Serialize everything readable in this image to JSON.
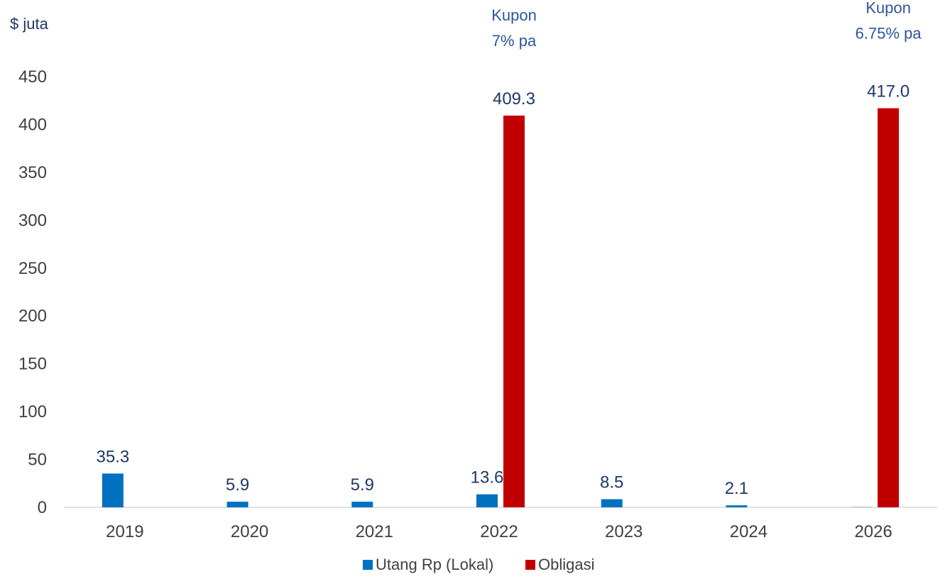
{
  "chart_data": {
    "type": "bar",
    "ylabel": "$ juta",
    "xlabel": "",
    "ylim": [
      0,
      450
    ],
    "yticks": [
      0,
      50,
      100,
      150,
      200,
      250,
      300,
      350,
      400,
      450
    ],
    "grid": false,
    "legend_position": "bottom",
    "categories": [
      "2019",
      "2020",
      "2021",
      "2022",
      "2023",
      "2024",
      "2026"
    ],
    "series": [
      {
        "name": "Utang Rp (Lokal)",
        "color": "#0070c0",
        "values": [
          35.3,
          5.9,
          5.9,
          13.6,
          8.5,
          2.1,
          null
        ],
        "labels": [
          "35.3",
          "5.9",
          "5.9",
          "13.6",
          "8.5",
          "2.1",
          null
        ]
      },
      {
        "name": "Obligasi",
        "color": "#c00000",
        "values": [
          null,
          null,
          null,
          409.3,
          null,
          null,
          417.0
        ],
        "labels": [
          null,
          null,
          null,
          "409.3",
          null,
          null,
          "417.0"
        ]
      }
    ],
    "annotations": [
      {
        "category": "2022",
        "lines": [
          "Kupon",
          "7% pa"
        ]
      },
      {
        "category": "2026",
        "lines": [
          "Kupon",
          "6.75% pa"
        ]
      }
    ]
  }
}
